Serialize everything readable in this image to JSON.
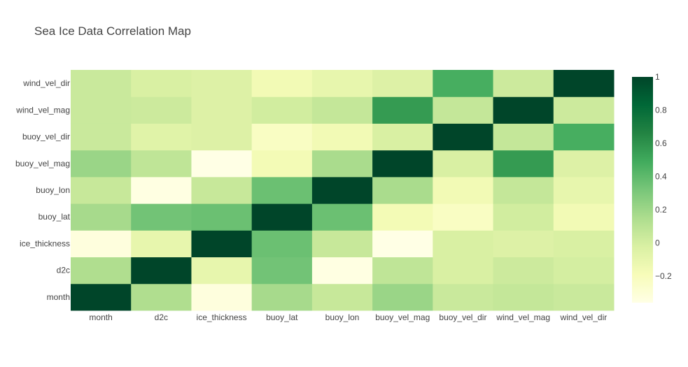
{
  "chart_data": {
    "type": "heatmap",
    "title": "Sea Ice Data Correlation Map",
    "x_labels": [
      "month",
      "d2c",
      "ice_thickness",
      "buoy_lat",
      "buoy_lon",
      "buoy_vel_mag",
      "buoy_vel_dir",
      "wind_vel_mag",
      "wind_vel_dir"
    ],
    "y_labels": [
      "month",
      "d2c",
      "ice_thickness",
      "buoy_lat",
      "buoy_lon",
      "buoy_vel_mag",
      "buoy_vel_dir",
      "wind_vel_mag",
      "wind_vel_dir"
    ],
    "z": [
      [
        1.0,
        0.14,
        -0.33,
        0.17,
        0.05,
        0.21,
        0.04,
        0.06,
        0.04
      ],
      [
        0.14,
        1.0,
        -0.1,
        0.34,
        -0.35,
        0.08,
        -0.02,
        0.03,
        0.0
      ],
      [
        -0.33,
        -0.1,
        1.0,
        0.36,
        0.05,
        -0.36,
        -0.02,
        -0.04,
        -0.02
      ],
      [
        0.17,
        0.34,
        0.36,
        1.0,
        0.36,
        -0.17,
        -0.23,
        0.01,
        -0.16
      ],
      [
        0.05,
        -0.35,
        0.05,
        0.36,
        1.0,
        0.16,
        -0.16,
        0.06,
        -0.1
      ],
      [
        0.21,
        0.08,
        -0.36,
        -0.17,
        0.16,
        1.0,
        -0.02,
        0.56,
        -0.04
      ],
      [
        0.04,
        -0.06,
        -0.04,
        -0.23,
        -0.16,
        -0.02,
        1.0,
        0.06,
        0.47
      ],
      [
        0.04,
        0.03,
        -0.04,
        0.01,
        0.06,
        0.56,
        0.06,
        1.0,
        0.03
      ],
      [
        0.04,
        -0.02,
        -0.04,
        -0.16,
        -0.1,
        -0.04,
        0.47,
        0.03,
        1.0
      ]
    ],
    "zmin": -0.36,
    "zmax": 1.0,
    "colorscale": "Greens",
    "colorbar_ticks": [
      -0.2,
      0,
      0.2,
      0.4,
      0.6,
      0.8,
      1
    ],
    "colorbar_tick_labels": [
      "−0.2",
      "0",
      "0.2",
      "0.4",
      "0.6",
      "0.8",
      "1"
    ]
  }
}
